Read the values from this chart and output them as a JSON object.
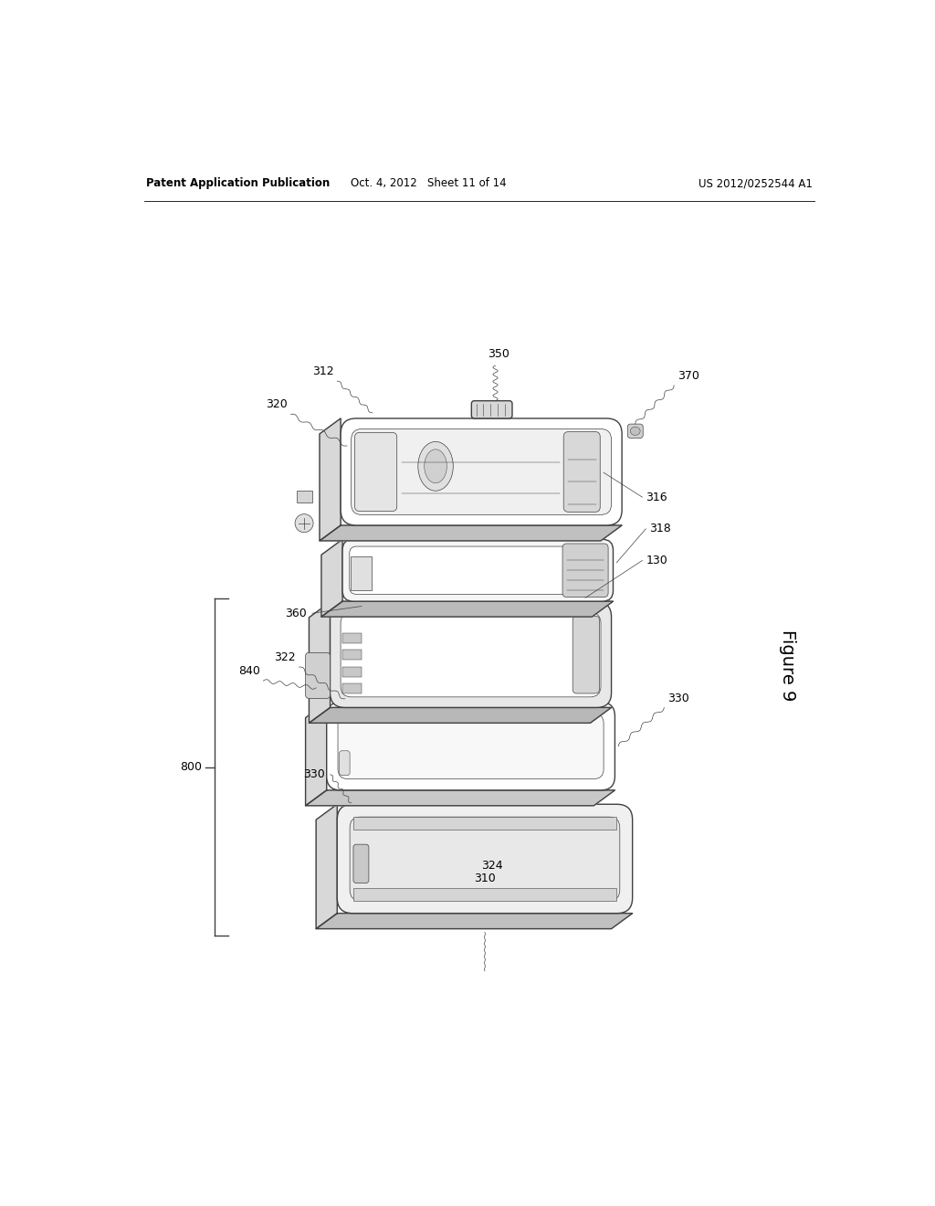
{
  "background_color": "#ffffff",
  "header_left": "Patent Application Publication",
  "header_center": "Oct. 4, 2012   Sheet 11 of 14",
  "header_right": "US 2012/0252544 A1",
  "figure_label": "Figure 9",
  "line_color": "#404040",
  "text_color": "#000000",
  "lw_main": 1.0,
  "lw_thin": 0.5,
  "lw_header": 0.6
}
